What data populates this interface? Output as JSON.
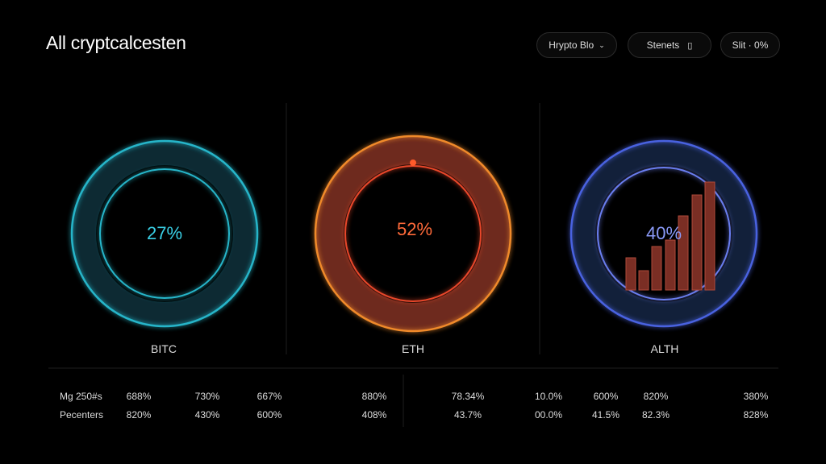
{
  "header": {
    "title": "All cryptcalcesten",
    "buttons": [
      "Hrypto Blo",
      "Stenets",
      "Slit · 0%"
    ]
  },
  "panels": [
    {
      "value_label": "27%",
      "label": "BITC"
    },
    {
      "value_label": "52%",
      "label": "ETH"
    },
    {
      "value_label": "40%",
      "label": "ALTH"
    }
  ],
  "table": {
    "rows": [
      [
        "Mg 250#s",
        "688%",
        "730%",
        "667%",
        "880%",
        "78.34%",
        "10.0%",
        "600%",
        "820%",
        "380%"
      ],
      [
        "Pecenters",
        "820%",
        "430%",
        "600%",
        "408%",
        "43.7%",
        "00.0%",
        "41.5%",
        "82.3%",
        "828%"
      ]
    ]
  }
}
